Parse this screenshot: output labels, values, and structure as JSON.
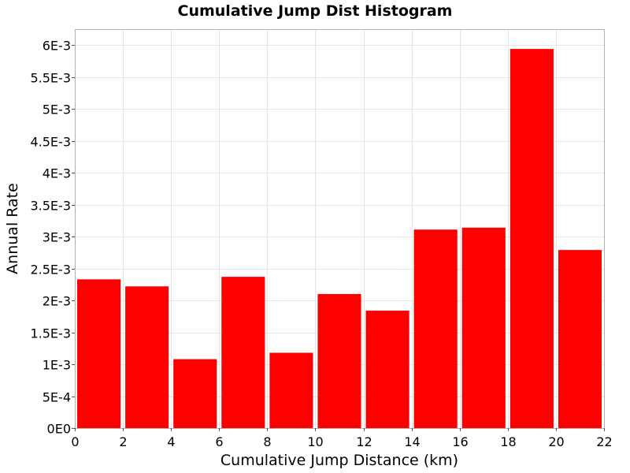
{
  "chart_data": {
    "type": "bar",
    "title": "Cumulative Jump Dist Histogram",
    "xlabel": "Cumulative Jump Distance (km)",
    "ylabel": "Annual Rate",
    "xlim": [
      0,
      22
    ],
    "ylim": [
      0,
      0.00625
    ],
    "grid": true,
    "bar_color": "#ff0000",
    "bin_width": 2,
    "x_ticks": [
      0,
      2,
      4,
      6,
      8,
      10,
      12,
      14,
      16,
      18,
      20,
      22
    ],
    "x_tick_labels": [
      "0",
      "2",
      "4",
      "6",
      "8",
      "10",
      "12",
      "14",
      "16",
      "18",
      "20",
      "22"
    ],
    "y_ticks": [
      0,
      0.0005,
      0.001,
      0.0015,
      0.002,
      0.0025,
      0.003,
      0.0035,
      0.004,
      0.0045,
      0.005,
      0.0055,
      0.006
    ],
    "y_tick_labels": [
      "0E0",
      "5E-4",
      "1E-3",
      "1.5E-3",
      "2E-3",
      "2.5E-3",
      "3E-3",
      "3.5E-3",
      "4E-3",
      "4.5E-3",
      "5E-3",
      "5.5E-3",
      "6E-3"
    ],
    "bins": [
      {
        "x": 1,
        "value": 0.00233
      },
      {
        "x": 3,
        "value": 0.00222
      },
      {
        "x": 5,
        "value": 0.00108
      },
      {
        "x": 7,
        "value": 0.00237
      },
      {
        "x": 9,
        "value": 0.00118
      },
      {
        "x": 11,
        "value": 0.0021
      },
      {
        "x": 13,
        "value": 0.00184
      },
      {
        "x": 15,
        "value": 0.00311
      },
      {
        "x": 17,
        "value": 0.00314
      },
      {
        "x": 19,
        "value": 0.00594
      },
      {
        "x": 21,
        "value": 0.00279
      }
    ]
  }
}
